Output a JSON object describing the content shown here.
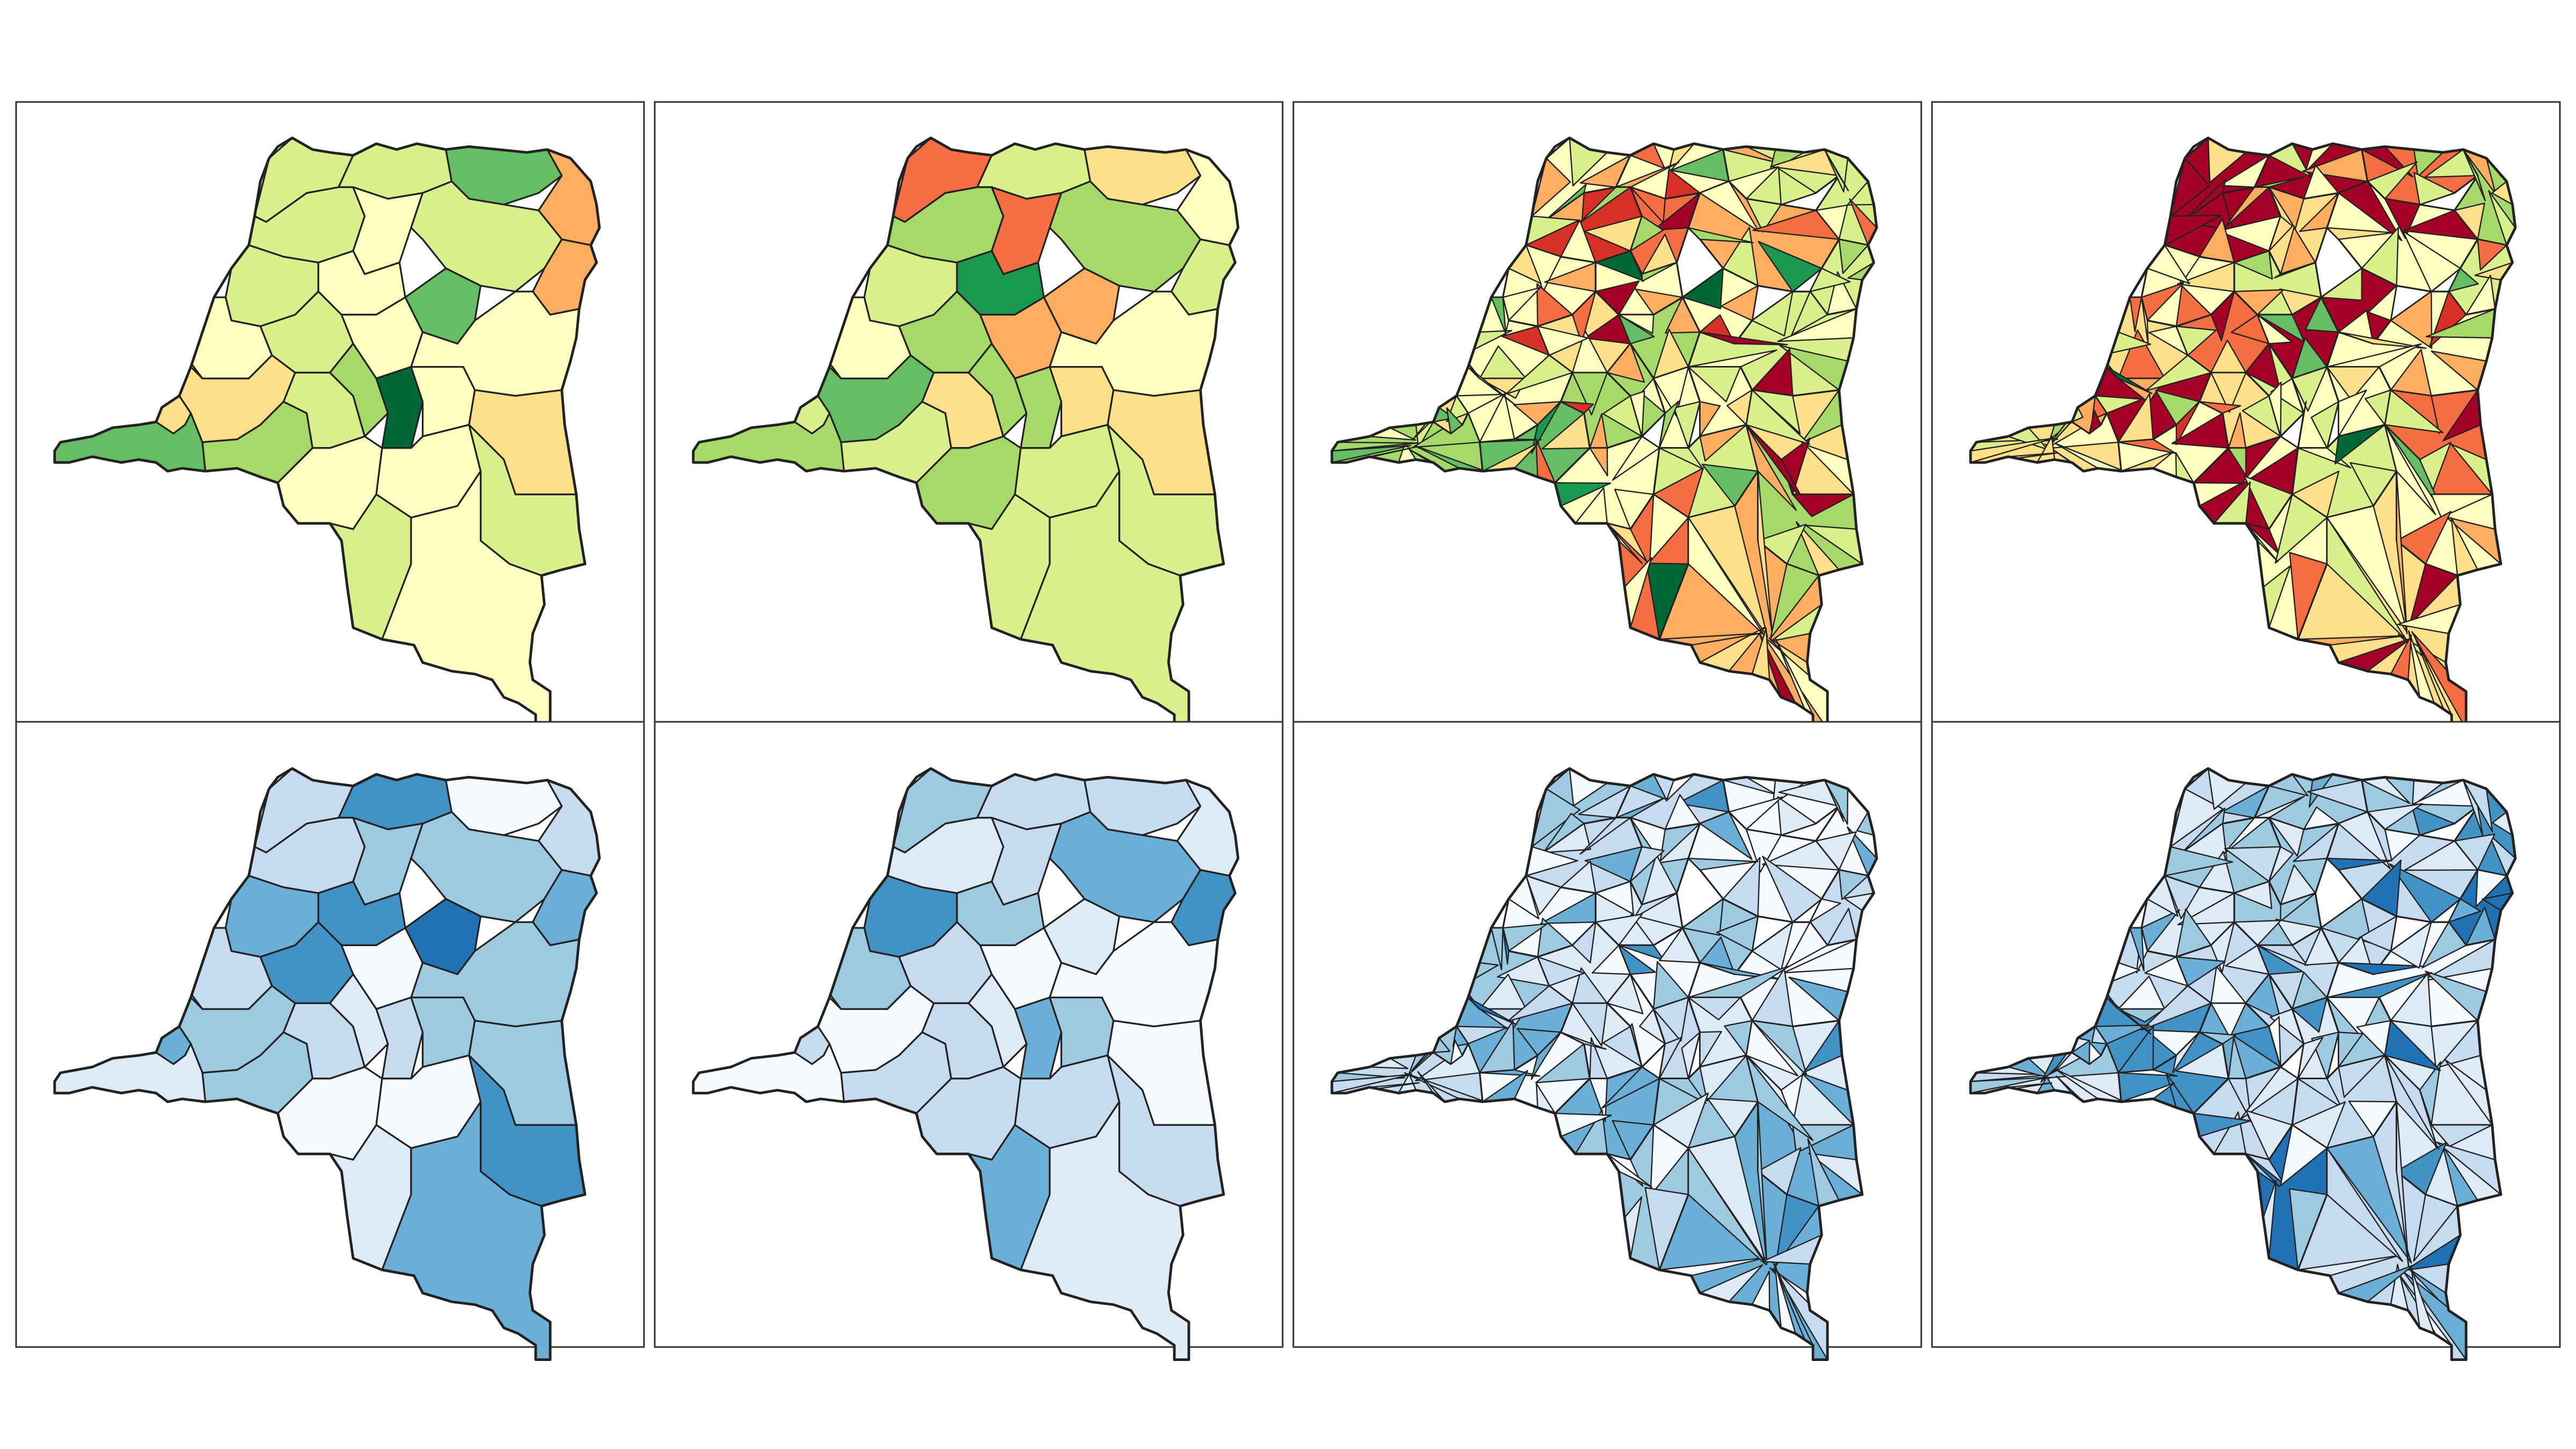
{
  "figure": {
    "layout": {
      "rows": 2,
      "cols": 4
    },
    "colors": {
      "ryg": [
        "#a50026",
        "#d73027",
        "#f46d43",
        "#fdae61",
        "#fee08b",
        "#ffffbf",
        "#d9ef8b",
        "#a6d96a",
        "#66bd63",
        "#1a9850",
        "#006837"
      ],
      "blues": [
        "#f7fbff",
        "#deebf7",
        "#c6dbef",
        "#9ecae1",
        "#6baed6",
        "#4292c6",
        "#2171b5"
      ],
      "outline": "#222222",
      "frame": "#333333"
    },
    "panels": [
      {
        "id": "r1c1",
        "palette": "ryg",
        "subdivided": false,
        "seed": 11,
        "skew": 0.25
      },
      {
        "id": "r1c2",
        "palette": "ryg",
        "subdivided": false,
        "seed": 23,
        "skew": 0.0
      },
      {
        "id": "r1c3",
        "palette": "ryg",
        "subdivided": true,
        "seed": 37,
        "skew": -0.15
      },
      {
        "id": "r1c4",
        "palette": "ryg",
        "subdivided": true,
        "seed": 53,
        "skew": -0.35
      },
      {
        "id": "r2c1",
        "palette": "blues",
        "subdivided": false,
        "seed": 61,
        "skew": 0.1
      },
      {
        "id": "r2c2",
        "palette": "blues",
        "subdivided": false,
        "seed": 71,
        "skew": 0.0
      },
      {
        "id": "r2c3",
        "palette": "blues",
        "subdivided": true,
        "seed": 83,
        "skew": -0.1
      },
      {
        "id": "r2c4",
        "palette": "blues",
        "subdivided": true,
        "seed": 97,
        "skew": 0.05
      }
    ]
  }
}
